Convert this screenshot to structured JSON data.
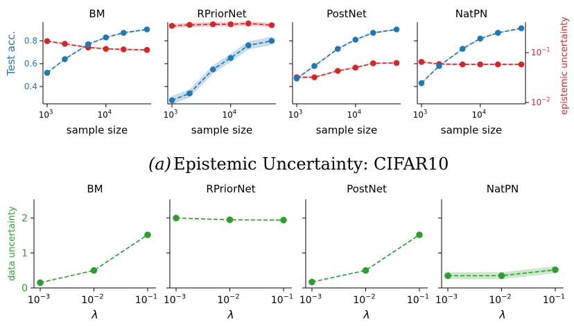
{
  "caption_a": {
    "prefix": "(a)",
    "text": "Epistemic Uncertainty: CIFAR10"
  },
  "colors": {
    "acc": "#1f77b4",
    "unc": "#d62728",
    "data": "#2ca02c"
  },
  "top_left_axis_label": "Test acc.",
  "top_right_axis_label": "epistemic uncertainty",
  "top_xlabel": "sample size",
  "bottom_left_axis_label": "data uncertainty",
  "bottom_xlabel": "λ",
  "chart_data": [
    {
      "type": "line",
      "title": "BM",
      "row": "epistemic",
      "x": [
        1000,
        2000,
        5000,
        10000,
        20000,
        50000
      ],
      "series": [
        {
          "name": "Test acc.",
          "axis": "left",
          "values": [
            0.52,
            0.64,
            0.77,
            0.83,
            0.87,
            0.9
          ]
        },
        {
          "name": "epistemic uncertainty",
          "axis": "right",
          "values": [
            0.17,
            0.15,
            0.127,
            0.119,
            0.116,
            0.113
          ]
        }
      ]
    },
    {
      "type": "line",
      "title": "RPriorNet",
      "row": "epistemic",
      "x": [
        1000,
        2000,
        5000,
        10000,
        20000,
        50000
      ],
      "series": [
        {
          "name": "Test acc.",
          "axis": "left",
          "values": [
            0.28,
            0.34,
            0.55,
            0.65,
            0.76,
            0.8
          ]
        },
        {
          "name": "epistemic uncertainty",
          "axis": "right",
          "values": [
            0.345,
            0.36,
            0.37,
            0.37,
            0.385,
            0.355
          ]
        }
      ]
    },
    {
      "type": "line",
      "title": "PostNet",
      "row": "epistemic",
      "x": [
        1000,
        2000,
        5000,
        10000,
        20000,
        50000
      ],
      "series": [
        {
          "name": "Test acc.",
          "axis": "left",
          "values": [
            0.47,
            0.58,
            0.73,
            0.81,
            0.87,
            0.9
          ]
        },
        {
          "name": "epistemic uncertainty",
          "axis": "right",
          "values": [
            0.032,
            0.032,
            0.043,
            0.05,
            0.061,
            0.062
          ]
        }
      ]
    },
    {
      "type": "line",
      "title": "NatPN",
      "row": "epistemic",
      "x": [
        1000,
        2000,
        5000,
        10000,
        20000,
        50000
      ],
      "series": [
        {
          "name": "Test acc.",
          "axis": "left",
          "values": [
            0.43,
            0.58,
            0.73,
            0.82,
            0.87,
            0.91
          ]
        },
        {
          "name": "epistemic uncertainty",
          "axis": "right",
          "values": [
            0.065,
            0.059,
            0.058,
            0.058,
            0.058,
            0.058
          ]
        }
      ]
    },
    {
      "type": "line",
      "title": "BM",
      "row": "data",
      "x": [
        0.001,
        0.01,
        0.1
      ],
      "series": [
        {
          "name": "data uncertainty",
          "values": [
            0.15,
            0.5,
            1.52
          ]
        }
      ]
    },
    {
      "type": "line",
      "title": "RPriorNet",
      "row": "data",
      "x": [
        0.001,
        0.01,
        0.1
      ],
      "series": [
        {
          "name": "data uncertainty",
          "values": [
            2.0,
            1.95,
            1.94
          ]
        }
      ]
    },
    {
      "type": "line",
      "title": "PostNet",
      "row": "data",
      "x": [
        0.001,
        0.01,
        0.1
      ],
      "series": [
        {
          "name": "data uncertainty",
          "values": [
            0.17,
            0.5,
            1.52
          ]
        }
      ]
    },
    {
      "type": "line",
      "title": "NatPN",
      "row": "data",
      "x": [
        0.001,
        0.01,
        0.1
      ],
      "series": [
        {
          "name": "data uncertainty",
          "values": [
            0.35,
            0.35,
            0.52
          ]
        }
      ]
    }
  ],
  "ticks": {
    "top_left_y": [
      "0.4",
      "0.6",
      "0.8"
    ],
    "top_right_y": [
      "10",
      "10"
    ],
    "top_right_y_exp": [
      "−1",
      "−2"
    ],
    "top_x": [
      "10",
      "10"
    ],
    "top_x_exp": [
      "3",
      "4"
    ],
    "bottom_y": [
      "0",
      "1",
      "2"
    ],
    "bottom_x": [
      "10",
      "10",
      "10"
    ],
    "bottom_x_exp": [
      "−3",
      "−2",
      "−1"
    ]
  }
}
